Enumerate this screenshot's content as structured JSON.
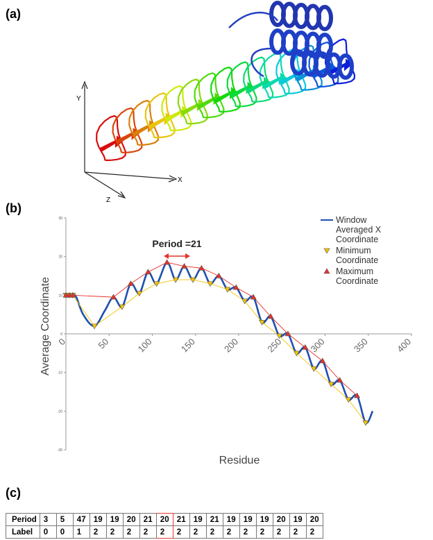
{
  "panel_labels": [
    "(a)",
    "(b)",
    "(c)"
  ],
  "structure": {
    "axes": [
      "Y",
      "X",
      "Z"
    ]
  },
  "chart_data": {
    "type": "line",
    "xlabel": "Residue",
    "ylabel": "Average Coordinate",
    "annotation": "Period =21",
    "xlim": [
      0,
      400
    ],
    "xticks": [
      0,
      50,
      100,
      150,
      200,
      250,
      300,
      350,
      400
    ],
    "ylim": [
      -30,
      30
    ],
    "yticks": [
      30,
      20,
      10,
      0,
      -10,
      -20,
      -30
    ],
    "legend": "upper right",
    "series": [
      {
        "name": "Window Averaged X Coordinate",
        "color": "#1f4fb0",
        "marker": "none",
        "x": [
          0,
          4,
          8,
          12,
          20,
          33,
          45,
          55,
          65,
          75,
          85,
          95,
          105,
          117,
          127,
          137,
          147,
          157,
          167,
          177,
          187,
          197,
          207,
          217,
          227,
          237,
          247,
          257,
          267,
          277,
          287,
          297,
          307,
          317,
          327,
          337,
          347,
          355
        ],
        "values": [
          10,
          10,
          10,
          9.5,
          5,
          2,
          6,
          9.5,
          7,
          13,
          10.5,
          16,
          13,
          18.5,
          14,
          17.5,
          14,
          17,
          13,
          15,
          11.5,
          12,
          8.5,
          9.5,
          3,
          4.5,
          -0.5,
          0,
          -5,
          -3.5,
          -9,
          -7,
          -13,
          -12,
          -17,
          -16,
          -23,
          -20
        ]
      },
      {
        "name": "Minimum Coordinate",
        "color": "#f2c200",
        "marker": "triangle-down",
        "x": [
          0,
          4,
          8,
          33,
          65,
          85,
          105,
          127,
          147,
          167,
          187,
          207,
          227,
          247,
          267,
          287,
          307,
          327,
          347
        ],
        "values": [
          10,
          10,
          10,
          2,
          7,
          10.5,
          13,
          14,
          14,
          13,
          11.5,
          8.5,
          3,
          -0.5,
          -5,
          -9,
          -13,
          -17,
          -23
        ]
      },
      {
        "name": "Maximum Coordinate",
        "color": "#e5322a",
        "marker": "triangle-up",
        "x": [
          0,
          4,
          8,
          55,
          75,
          95,
          117,
          137,
          157,
          177,
          197,
          217,
          237,
          257,
          277,
          297,
          317,
          337
        ],
        "values": [
          10,
          10,
          10,
          9.5,
          13,
          16,
          18.5,
          17.5,
          17,
          15,
          12,
          9.5,
          4.5,
          0,
          -3.5,
          -7,
          -12,
          -16
        ]
      }
    ]
  },
  "table": {
    "rows": [
      [
        "Period",
        "3",
        "5",
        "47",
        "19",
        "19",
        "20",
        "21",
        "20",
        "21",
        "19",
        "21",
        "19",
        "19",
        "19",
        "20",
        "19",
        "20"
      ],
      [
        "Label",
        "0",
        "0",
        "1",
        "2",
        "2",
        "2",
        "2",
        "2",
        "2",
        "2",
        "2",
        "2",
        "2",
        "2",
        "2",
        "2",
        "2"
      ]
    ]
  }
}
